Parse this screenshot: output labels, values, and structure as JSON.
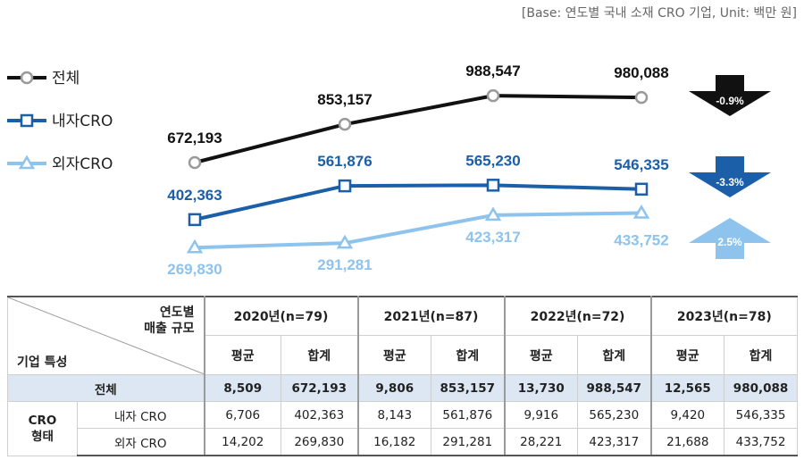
{
  "base_note": "[Base: 연도별 국내 소재 CRO 기업, Unit: 백만 원]",
  "colors": {
    "total": "#111111",
    "in": "#1b5fa8",
    "out": "#8dc3ec",
    "total_row_bg": "#dde7f3",
    "arrow_up": "#8dc3ec"
  },
  "chart_data": {
    "type": "line",
    "x": [
      "2020",
      "2021",
      "2022",
      "2023"
    ],
    "series": [
      {
        "name": "전체",
        "values": [
          672193,
          853157,
          988547,
          980088
        ],
        "labels": [
          "672,193",
          "853,157",
          "988,547",
          "980,088"
        ],
        "marker": "circle"
      },
      {
        "name": "내자CRO",
        "values": [
          402363,
          561876,
          565230,
          546335
        ],
        "labels": [
          "402,363",
          "561,876",
          "565,230",
          "546,335"
        ],
        "marker": "square"
      },
      {
        "name": "외자CRO",
        "values": [
          269830,
          291281,
          423317,
          433752
        ],
        "labels": [
          "269,830",
          "291,281",
          "423,317",
          "433,752"
        ],
        "marker": "triangle"
      }
    ],
    "changes": [
      {
        "series": "전체",
        "label": "-0.9%",
        "direction": "down"
      },
      {
        "series": "내자CRO",
        "label": "-3.3%",
        "direction": "down"
      },
      {
        "series": "외자CRO",
        "label": "2.5%",
        "direction": "up"
      }
    ],
    "legend_position": "left"
  },
  "table": {
    "corner_top": [
      "연도별",
      "매출 규모"
    ],
    "corner_bottom": "기업 특성",
    "years": [
      "2020년(n=79)",
      "2021년(n=87)",
      "2022년(n=72)",
      "2023년(n=78)"
    ],
    "sub_headers": [
      "평균",
      "합계"
    ],
    "total_row": {
      "label": "전체",
      "values": [
        "8,509",
        "672,193",
        "9,806",
        "853,157",
        "13,730",
        "988,547",
        "12,565",
        "980,088"
      ]
    },
    "group_label": [
      "CRO",
      "형태"
    ],
    "rows": [
      {
        "label": "내자 CRO",
        "values": [
          "6,706",
          "402,363",
          "8,143",
          "561,876",
          "9,916",
          "565,230",
          "9,420",
          "546,335"
        ]
      },
      {
        "label": "외자 CRO",
        "values": [
          "14,202",
          "269,830",
          "16,182",
          "291,281",
          "28,221",
          "423,317",
          "21,688",
          "433,752"
        ]
      }
    ]
  }
}
